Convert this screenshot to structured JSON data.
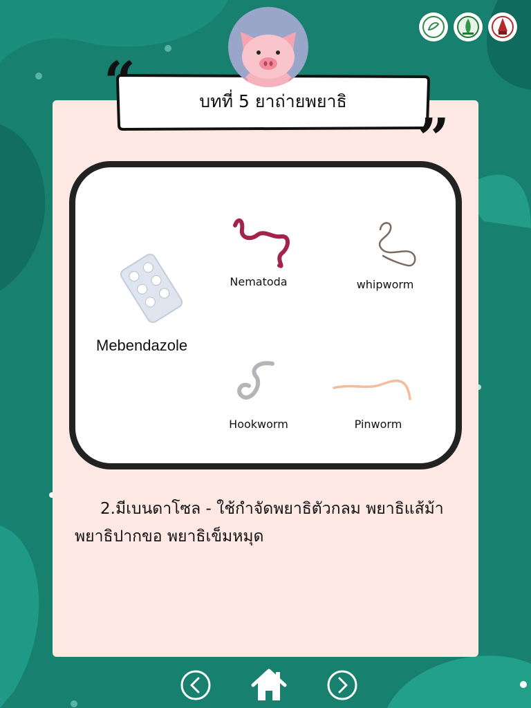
{
  "header": {
    "title": "บทที่ 5 ยาถ่ายพยาธิ",
    "logos": [
      "university-seal-icon",
      "faculty-seal-icon",
      "school-logo-icon"
    ]
  },
  "panel": {
    "drug_name": "Mebendazole",
    "worms": [
      {
        "label": "Nematoda",
        "icon": "nematoda-worm-icon"
      },
      {
        "label": "whipworm",
        "icon": "whipworm-icon"
      },
      {
        "label": "Hookworm",
        "icon": "hookworm-icon"
      },
      {
        "label": "Pinworm",
        "icon": "pinworm-icon"
      }
    ]
  },
  "description": {
    "line1": "2.มีเบนดาโซล - ใช้กำจัดพยาธิตัวกลม พยาธิแส้ม้า",
    "line2": "พยาธิปากขอ พยาธิเข็มหมุด"
  },
  "nav": {
    "prev": "chevron-left-icon",
    "home": "home-icon",
    "next": "chevron-right-icon"
  },
  "colors": {
    "background": "#17806f",
    "card": "#fde8e4",
    "avatar": "#9aa6c9"
  }
}
